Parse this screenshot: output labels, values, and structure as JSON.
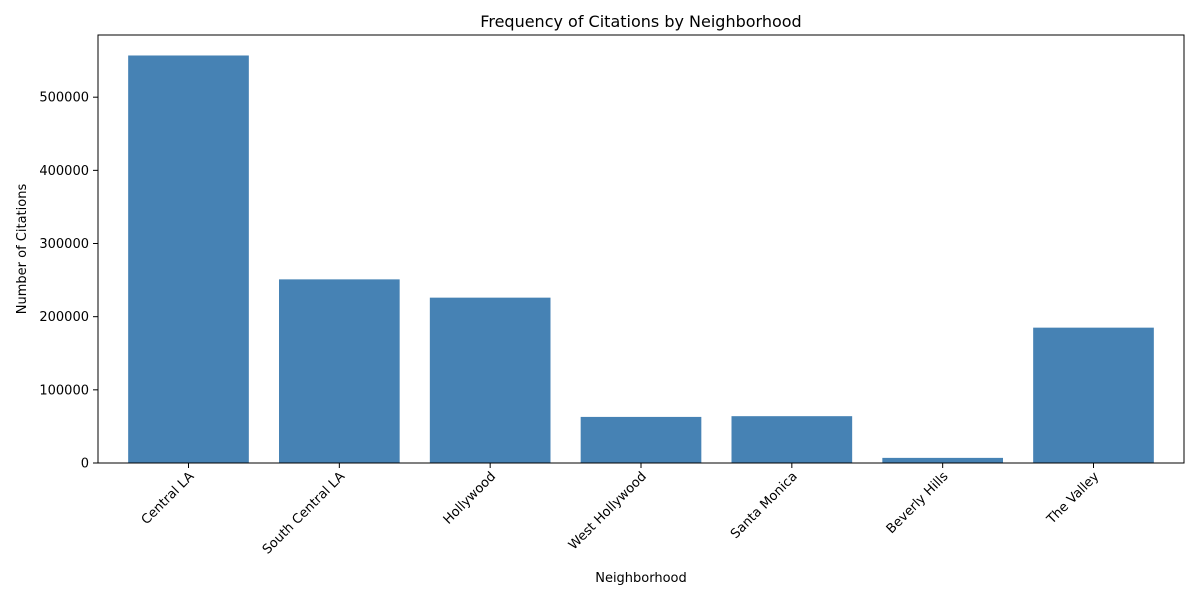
{
  "chart_data": {
    "type": "bar",
    "title": "Frequency of Citations by Neighborhood",
    "xlabel": "Neighborhood",
    "ylabel": "Number of Citations",
    "categories": [
      "Central LA",
      "South Central LA",
      "Hollywood",
      "West Hollywood",
      "Santa Monica",
      "Beverly Hills",
      "The Valley"
    ],
    "values": [
      557000,
      251000,
      226000,
      63000,
      64000,
      7000,
      185000
    ],
    "ylim": [
      0,
      585000
    ],
    "yticks": [
      0,
      100000,
      200000,
      300000,
      400000,
      500000
    ],
    "ytick_labels": [
      "0",
      "100000",
      "200000",
      "300000",
      "400000",
      "500000"
    ],
    "bar_color": "#4682b4",
    "grid": false
  }
}
